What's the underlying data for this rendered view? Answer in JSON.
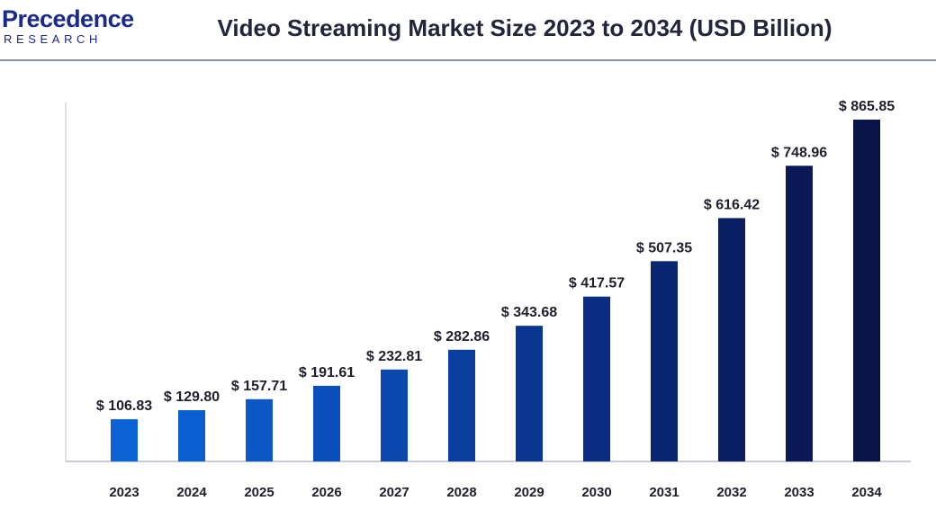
{
  "brand": {
    "name": "Precedence",
    "tagline": "RESEARCH",
    "color": "#1a2a8c"
  },
  "chart_data": {
    "type": "bar",
    "title": "Video Streaming Market Size 2023 to 2034 (USD Billion)",
    "xlabel": "",
    "ylabel": "",
    "categories": [
      "2023",
      "2024",
      "2025",
      "2026",
      "2027",
      "2028",
      "2029",
      "2030",
      "2031",
      "2032",
      "2033",
      "2034"
    ],
    "values": [
      106.83,
      129.8,
      157.71,
      191.61,
      232.81,
      282.86,
      343.68,
      417.57,
      507.35,
      616.42,
      748.96,
      865.85
    ],
    "data_labels": [
      "$ 106.83",
      "$ 129.80",
      "$ 157.71",
      "$ 191.61",
      "$ 232.81",
      "$ 282.86",
      "$ 343.68",
      "$ 417.57",
      "$ 507.35",
      "$ 616.42",
      "$ 748.96",
      "$ 865.85"
    ],
    "ylim": [
      0,
      900
    ],
    "grid": false,
    "legend": "none",
    "bar_colors": [
      "#0b63d6",
      "#0b5ed0",
      "#0b57c6",
      "#0a4fbb",
      "#0a47ae",
      "#0a3fa0",
      "#0a3692",
      "#0a2d82",
      "#0a2673",
      "#0a1f63",
      "#0a1955",
      "#091448"
    ]
  }
}
